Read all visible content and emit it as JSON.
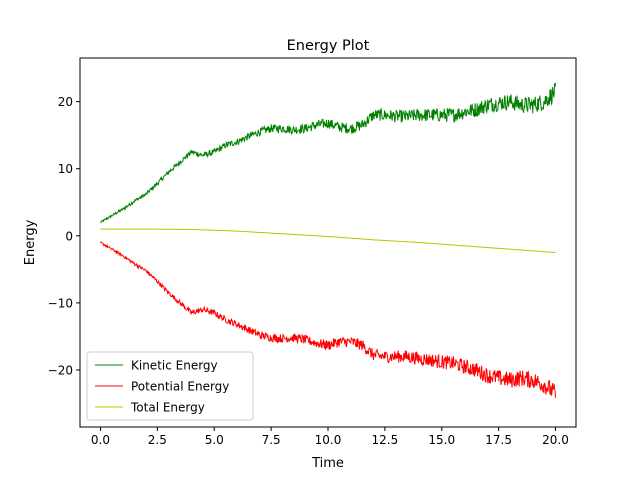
{
  "chart_data": {
    "type": "line",
    "title": "Energy Plot",
    "xlabel": "Time",
    "ylabel": "Energy",
    "xlim": [
      -0.9,
      20.9
    ],
    "ylim": [
      -28.5,
      26.5
    ],
    "xticks": [
      0.0,
      2.5,
      5.0,
      7.5,
      10.0,
      12.5,
      15.0,
      17.5,
      20.0
    ],
    "xtick_labels": [
      "0.0",
      "2.5",
      "5.0",
      "7.5",
      "10.0",
      "12.5",
      "15.0",
      "17.5",
      "20.0"
    ],
    "yticks": [
      -20,
      -10,
      0,
      10,
      20
    ],
    "ytick_labels": [
      "−20",
      "−10",
      "0",
      "10",
      "20"
    ],
    "grid": false,
    "legend_position": "lower-left",
    "noisy": true,
    "series": [
      {
        "name": "Kinetic Energy",
        "color": "#008000",
        "x": [
          0,
          0.5,
          1,
          1.5,
          2,
          2.5,
          3,
          3.5,
          4,
          4.5,
          5,
          5.5,
          6,
          6.5,
          7,
          7.5,
          8,
          8.5,
          9,
          9.5,
          10,
          10.5,
          11,
          11.5,
          12,
          12.5,
          13,
          13.5,
          14,
          14.5,
          15,
          15.5,
          16,
          16.5,
          17,
          17.5,
          18,
          18.5,
          19,
          19.5,
          20
        ],
        "values": [
          2.0,
          3.0,
          4.0,
          5.2,
          6.2,
          7.8,
          9.5,
          11.0,
          12.5,
          12.0,
          12.5,
          13.5,
          14.0,
          14.8,
          15.5,
          16.0,
          16.0,
          15.8,
          16.0,
          16.5,
          16.8,
          16.2,
          16.0,
          16.5,
          18.0,
          18.0,
          17.8,
          17.8,
          18.0,
          18.0,
          18.0,
          18.0,
          18.5,
          18.8,
          19.5,
          19.8,
          20.0,
          19.5,
          19.5,
          20.0,
          21.5
        ]
      },
      {
        "name": "Potential Energy",
        "color": "#ff0000",
        "x": [
          0,
          0.5,
          1,
          1.5,
          2,
          2.5,
          3,
          3.5,
          4,
          4.5,
          5,
          5.5,
          6,
          6.5,
          7,
          7.5,
          8,
          8.5,
          9,
          9.5,
          10,
          10.5,
          11,
          11.5,
          12,
          12.5,
          13,
          13.5,
          14,
          14.5,
          15,
          15.5,
          16,
          16.5,
          17,
          17.5,
          18,
          18.5,
          19,
          19.5,
          20
        ],
        "values": [
          -1.0,
          -2.0,
          -3.0,
          -4.2,
          -5.2,
          -6.8,
          -8.5,
          -10.0,
          -11.5,
          -11.0,
          -11.5,
          -12.5,
          -13.2,
          -14.0,
          -14.8,
          -15.2,
          -15.3,
          -15.2,
          -15.5,
          -16.0,
          -16.3,
          -15.8,
          -15.8,
          -16.3,
          -17.8,
          -18.0,
          -18.0,
          -18.0,
          -18.3,
          -18.5,
          -18.8,
          -19.0,
          -19.5,
          -20.0,
          -20.8,
          -21.2,
          -21.5,
          -21.2,
          -21.5,
          -22.2,
          -23.5
        ]
      },
      {
        "name": "Total Energy",
        "color": "#bfbf00",
        "x": [
          0,
          2,
          4,
          6,
          8,
          10,
          12,
          14,
          16,
          18,
          20
        ],
        "values": [
          1.0,
          1.0,
          0.95,
          0.7,
          0.3,
          -0.1,
          -0.6,
          -1.0,
          -1.5,
          -2.0,
          -2.5
        ]
      }
    ]
  }
}
